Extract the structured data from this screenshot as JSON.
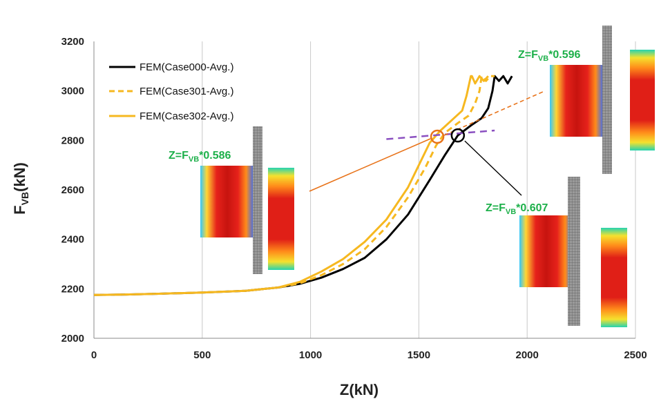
{
  "chart_data": {
    "type": "line",
    "xlabel": "Z(kN)",
    "ylabel": "F",
    "ylabel_sub": "VB",
    "ylabel_unit": "(kN)",
    "xlim": [
      0,
      2500
    ],
    "ylim": [
      2000,
      3200
    ],
    "x_ticks": [
      "0",
      "500",
      "1000",
      "1500",
      "2000",
      "2500"
    ],
    "y_ticks": [
      "2000",
      "2200",
      "2400",
      "2600",
      "2800",
      "3000",
      "3200"
    ],
    "grid": "vertical",
    "legend_position": "top-left",
    "series": [
      {
        "name": "FEM(Case000-Avg.)",
        "color": "#000000",
        "dash": "solid",
        "x": [
          0,
          150,
          300,
          500,
          700,
          850,
          950,
          1050,
          1150,
          1250,
          1350,
          1450,
          1550,
          1620,
          1680,
          1740,
          1790,
          1820,
          1840,
          1850,
          1870,
          1890,
          1910,
          1930
        ],
        "y": [
          2175,
          2177,
          2180,
          2185,
          2192,
          2205,
          2220,
          2245,
          2280,
          2325,
          2400,
          2500,
          2640,
          2740,
          2820,
          2860,
          2890,
          2930,
          3000,
          3060,
          3040,
          3060,
          3030,
          3060
        ]
      },
      {
        "name": "FEM(Case301-Avg.)",
        "color": "#f6b820",
        "dash": "dashed",
        "x": [
          0,
          150,
          300,
          500,
          700,
          850,
          950,
          1050,
          1150,
          1250,
          1350,
          1450,
          1530,
          1580,
          1620,
          1680,
          1730,
          1760,
          1780,
          1790,
          1810,
          1830,
          1850
        ],
        "y": [
          2175,
          2177,
          2180,
          2185,
          2192,
          2205,
          2222,
          2255,
          2300,
          2360,
          2450,
          2570,
          2690,
          2780,
          2830,
          2870,
          2900,
          2950,
          3000,
          3060,
          3040,
          3060,
          3060
        ]
      },
      {
        "name": "FEM(Case302-Avg.)",
        "color": "#f6b820",
        "dash": "solid",
        "x": [
          0,
          150,
          300,
          500,
          700,
          850,
          950,
          1050,
          1150,
          1250,
          1350,
          1450,
          1500,
          1550,
          1600,
          1650,
          1700,
          1720,
          1740,
          1745,
          1760,
          1780,
          1800,
          1820
        ],
        "y": [
          2175,
          2177,
          2180,
          2185,
          2192,
          2205,
          2228,
          2270,
          2320,
          2390,
          2480,
          2610,
          2700,
          2790,
          2840,
          2880,
          2920,
          2980,
          3060,
          3060,
          3030,
          3060,
          3040,
          3060
        ]
      }
    ],
    "reference_line": {
      "color": "#8a4fc0",
      "x": [
        1350,
        1850
      ],
      "y": [
        2805,
        2840
      ]
    },
    "markers": [
      {
        "x": 1585,
        "y": 2815,
        "color": "#e8731a"
      },
      {
        "x": 1680,
        "y": 2820,
        "color": "#000000"
      }
    ],
    "annotations": [
      {
        "main": "Z=F",
        "sub": "VB",
        "rest": "*0.586"
      },
      {
        "main": "Z=F",
        "sub": "VB",
        "rest": "*0.596"
      },
      {
        "main": "Z=F",
        "sub": "VB",
        "rest": "*0.607"
      }
    ]
  }
}
